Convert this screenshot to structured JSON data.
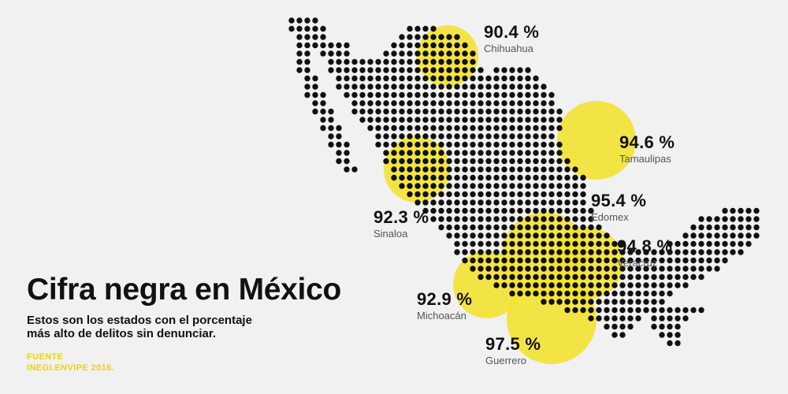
{
  "title": "Cifra negra en México",
  "subtitle_line1": "Estos son los estados con el porcentaje",
  "subtitle_line2": "más alto de delitos sin denunciar.",
  "source_label": "FUENTE",
  "source_value": "INEGI.ENVIPE 2016.",
  "colors": {
    "background": "#f1f1f1",
    "dots": "#111111",
    "highlight": "#f3e227",
    "source_text": "#f0d20a"
  },
  "states": [
    {
      "name": "Chihuahua",
      "value_label": "90.4 %",
      "value": 90.4
    },
    {
      "name": "Tamaulipas",
      "value_label": "94.6 %",
      "value": 94.6
    },
    {
      "name": "Edomex",
      "value_label": "95.4 %",
      "value": 95.4
    },
    {
      "name": "Sinaloa",
      "value_label": "92.3 %",
      "value": 92.3
    },
    {
      "name": "Veracruz",
      "value_label": "94.8 %",
      "value": 94.8
    },
    {
      "name": "Michoacán",
      "value_label": "92.9 %",
      "value": 92.9
    },
    {
      "name": "Guerrero",
      "value_label": "97.5 %",
      "value": 97.5
    }
  ]
}
